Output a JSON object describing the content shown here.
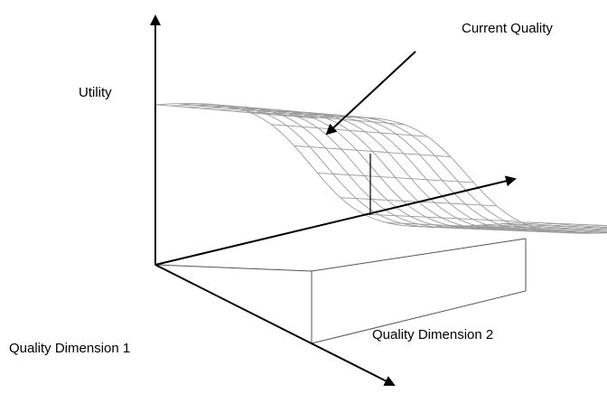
{
  "labels": {
    "current_quality": "Current Quality",
    "utility": "Utility",
    "quality_dimension_1": "Quality Dimension 1",
    "quality_dimension_2": "Quality Dimension 2"
  },
  "colors": {
    "axes": "#000000",
    "mesh": "#9a9a9a",
    "box": "#555555"
  }
}
